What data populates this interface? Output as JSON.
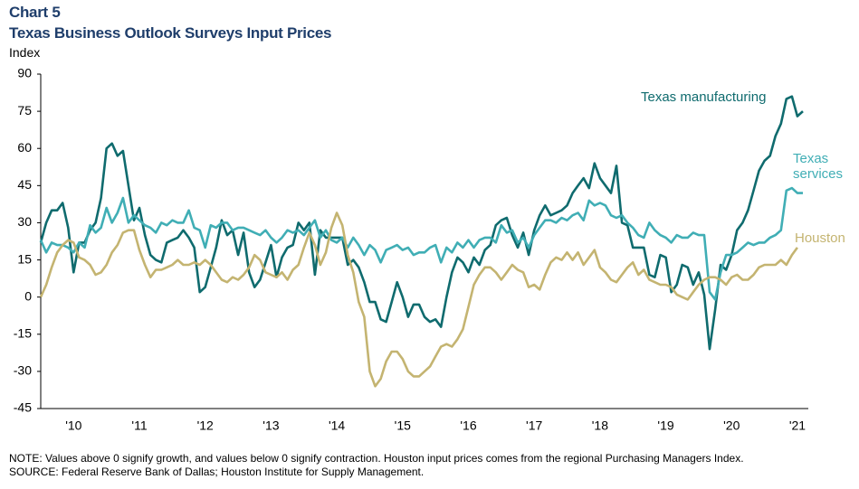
{
  "chart_data": {
    "type": "line",
    "title": "Chart 5",
    "subtitle": "Texas Business Outlook Surveys Input Prices",
    "y_label": "Index",
    "notes": [
      "NOTE: Values above 0 signify growth, and values below 0 signify contraction. Houston input prices comes from the regional Purchasing Managers Index.",
      "SOURCE: Federal Reserve  Bank of Dallas; Houston Institute for Supply Management."
    ],
    "categories": [
      null,
      null,
      null,
      null,
      null,
      null,
      "'10",
      null,
      null,
      null,
      null,
      null,
      null,
      null,
      null,
      null,
      null,
      null,
      "'11",
      null,
      null,
      null,
      null,
      null,
      null,
      null,
      null,
      null,
      null,
      null,
      "'12",
      null,
      null,
      null,
      null,
      null,
      null,
      null,
      null,
      null,
      null,
      null,
      "'13",
      null,
      null,
      null,
      null,
      null,
      null,
      null,
      null,
      null,
      null,
      null,
      "'14",
      null,
      null,
      null,
      null,
      null,
      null,
      null,
      null,
      null,
      null,
      null,
      "'15",
      null,
      null,
      null,
      null,
      null,
      null,
      null,
      null,
      null,
      null,
      null,
      "'16",
      null,
      null,
      null,
      null,
      null,
      null,
      null,
      null,
      null,
      null,
      null,
      "'17",
      null,
      null,
      null,
      null,
      null,
      null,
      null,
      null,
      null,
      null,
      null,
      "'18",
      null,
      null,
      null,
      null,
      null,
      null,
      null,
      null,
      null,
      null,
      null,
      "'19",
      null,
      null,
      null,
      null,
      null,
      null,
      null,
      null,
      null,
      null,
      null,
      "'20",
      null,
      null,
      null,
      null,
      null,
      null,
      null,
      null,
      null,
      null,
      null,
      "'21",
      null
    ],
    "series": [
      {
        "name": "Texas manufacturing",
        "color": "#0f6b6e",
        "values": [
          22,
          30,
          35,
          35,
          38,
          28,
          10,
          22,
          22,
          27,
          30,
          40,
          60,
          62,
          57,
          59,
          45,
          31,
          36,
          25,
          17,
          15,
          14,
          22,
          23,
          24,
          27,
          24,
          20,
          2,
          4,
          12,
          20,
          31,
          25,
          27,
          17,
          26,
          10,
          4,
          7,
          14,
          21,
          8,
          16,
          20,
          21,
          30,
          27,
          30,
          9,
          27,
          24,
          24,
          24,
          24,
          13,
          15,
          12,
          6,
          -2,
          -2,
          -9,
          -10,
          -2,
          6,
          0,
          -8,
          -3,
          -3,
          -8,
          -10,
          -9,
          -12,
          0,
          10,
          16,
          14,
          10,
          16,
          13,
          19,
          21,
          29,
          31,
          32,
          25,
          20,
          26,
          17,
          27,
          33,
          37,
          33,
          34,
          35,
          37,
          42,
          45,
          48,
          44,
          54,
          48,
          45,
          42,
          53,
          30,
          29,
          20,
          20,
          20,
          9,
          8,
          17,
          16,
          2,
          5,
          13,
          12,
          5,
          10,
          1,
          -21,
          -5,
          13,
          11,
          17,
          27,
          30,
          35,
          43,
          51,
          55,
          57,
          65,
          70,
          80,
          81,
          73,
          75
        ]
      },
      {
        "name": "Texas services",
        "color": "#40aeb5",
        "values": [
          23,
          18,
          22,
          21,
          21,
          20,
          18,
          22,
          20,
          29,
          26,
          28,
          36,
          30,
          34,
          40,
          30,
          33,
          31,
          29,
          28,
          26,
          30,
          29,
          31,
          30,
          30,
          35,
          28,
          27,
          20,
          29,
          28,
          30,
          30,
          27,
          28,
          28,
          27,
          26,
          25,
          27,
          24,
          22,
          24,
          27,
          26,
          27,
          25,
          28,
          31,
          24,
          27,
          23,
          22,
          24,
          20,
          24,
          21,
          17,
          21,
          19,
          14,
          19,
          20,
          21,
          19,
          20,
          17,
          18,
          18,
          20,
          21,
          14,
          20,
          18,
          22,
          20,
          23,
          20,
          23,
          24,
          24,
          22,
          29,
          26,
          27,
          22,
          24,
          20,
          25,
          28,
          31,
          31,
          30,
          32,
          31,
          33,
          34,
          31,
          39,
          37,
          38,
          37,
          33,
          32,
          33,
          30,
          28,
          25,
          24,
          30,
          27,
          25,
          24,
          22,
          25,
          24,
          24,
          26,
          25,
          25,
          2,
          -1,
          10,
          17,
          17,
          18,
          20,
          22,
          21,
          22,
          22,
          24,
          25,
          27,
          43,
          44,
          42,
          42
        ]
      },
      {
        "name": "Houston",
        "color": "#c4b471",
        "values": [
          0,
          5,
          12,
          18,
          21,
          23,
          22,
          16,
          15,
          13,
          9,
          10,
          13,
          18,
          21,
          26,
          27,
          27,
          19,
          13,
          8,
          11,
          11,
          12,
          13,
          15,
          13,
          13,
          14,
          13,
          15,
          13,
          10,
          7,
          6,
          8,
          7,
          9,
          12,
          17,
          15,
          10,
          9,
          8,
          10,
          7,
          11,
          13,
          20,
          26,
          21,
          13,
          18,
          28,
          34,
          29,
          17,
          10,
          -2,
          -8,
          -30,
          -36,
          -33,
          -26,
          -22,
          -22,
          -25,
          -30,
          -32,
          -32,
          -30,
          -28,
          -24,
          -20,
          -19,
          -20,
          -17,
          -13,
          -4,
          5,
          9,
          12,
          12,
          10,
          7,
          10,
          13,
          11,
          10,
          4,
          5,
          3,
          9,
          14,
          16,
          15,
          18,
          15,
          18,
          13,
          16,
          19,
          12,
          10,
          7,
          6,
          9,
          12,
          14,
          9,
          11,
          7,
          6,
          5,
          5,
          4,
          1,
          0,
          -1,
          2,
          5,
          7,
          8,
          8,
          7,
          5,
          8,
          9,
          7,
          7,
          9,
          12,
          13,
          13,
          13,
          15,
          13,
          17,
          20,
          null
        ]
      }
    ],
    "ylim": [
      -45,
      90
    ],
    "yticks": [
      -45,
      -30,
      -15,
      0,
      15,
      30,
      45,
      60,
      75,
      90
    ],
    "grid": false
  }
}
